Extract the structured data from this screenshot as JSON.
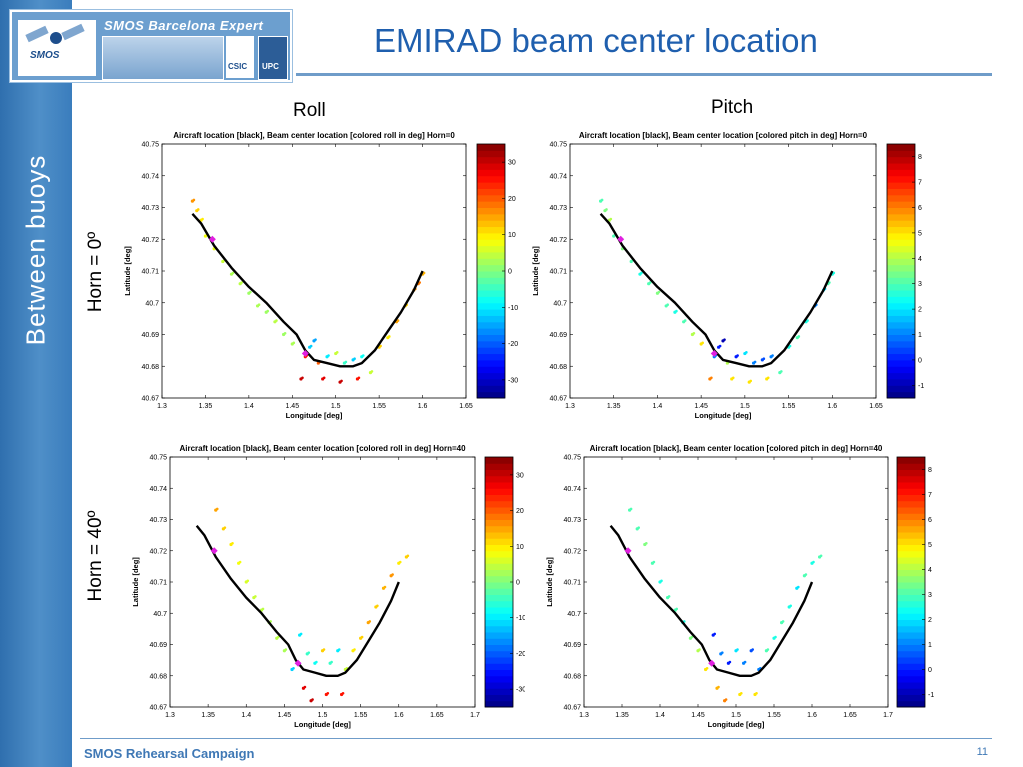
{
  "header": {
    "logo_title": "SMOS Barcelona Expert Centre",
    "smos_logo": "SMOS",
    "csic_logo": "CSIC",
    "upc_logo": "UPC",
    "title": "EMIRAD beam center location"
  },
  "sidebar": {
    "text": "Between  buoys"
  },
  "columns": {
    "roll": "Roll",
    "pitch": "Pitch"
  },
  "rows": {
    "horn0": "Horn = 0º",
    "horn40": "Horn = 40º"
  },
  "footer": {
    "left": "SMOS Rehearsal Campaign",
    "page": "11"
  },
  "chart_data": [
    {
      "type": "scatter",
      "title": "Aircraft location [black], Beam center location [colored roll in deg] Horn=0",
      "xlabel": "Longitude [deg]",
      "ylabel": "Latitude [deg]",
      "xlim": [
        1.3,
        1.65
      ],
      "ylim": [
        40.67,
        40.75
      ],
      "xticks": [
        "1.3",
        "1.35",
        "1.4",
        "1.45",
        "1.5",
        "1.55",
        "1.6",
        "1.65"
      ],
      "yticks": [
        "40.67",
        "40.68",
        "40.69",
        "40.7",
        "40.71",
        "40.72",
        "40.73",
        "40.74",
        "40.75"
      ],
      "colorbar": {
        "min": -35,
        "max": 35,
        "ticks": [
          "-30",
          "-20",
          "-10",
          "0",
          "10",
          "20",
          "30"
        ]
      },
      "aircraft_track": {
        "x": [
          1.335,
          1.345,
          1.36,
          1.38,
          1.4,
          1.42,
          1.44,
          1.455,
          1.465,
          1.475,
          1.49,
          1.505,
          1.52,
          1.53,
          1.545,
          1.56,
          1.575,
          1.59,
          1.6
        ],
        "y": [
          40.728,
          40.725,
          40.718,
          40.711,
          40.705,
          40.7,
          40.694,
          40.69,
          40.685,
          40.682,
          40.681,
          40.68,
          40.68,
          40.681,
          40.685,
          40.691,
          40.697,
          40.704,
          40.71
        ]
      },
      "beam_points": {
        "x": [
          1.335,
          1.34,
          1.345,
          1.35,
          1.36,
          1.37,
          1.38,
          1.39,
          1.4,
          1.41,
          1.42,
          1.43,
          1.44,
          1.45,
          1.46,
          1.465,
          1.47,
          1.475,
          1.48,
          1.485,
          1.49,
          1.5,
          1.505,
          1.51,
          1.52,
          1.525,
          1.53,
          1.54,
          1.55,
          1.56,
          1.57,
          1.58,
          1.59,
          1.595,
          1.6
        ],
        "y": [
          40.732,
          40.729,
          40.726,
          40.721,
          40.717,
          40.713,
          40.709,
          40.706,
          40.703,
          40.699,
          40.697,
          40.694,
          40.69,
          40.687,
          40.676,
          40.683,
          40.686,
          40.688,
          40.681,
          40.676,
          40.683,
          40.684,
          40.675,
          40.681,
          40.682,
          40.676,
          40.683,
          40.678,
          40.686,
          40.689,
          40.694,
          40.699,
          40.704,
          40.706,
          40.709
        ],
        "values": [
          16,
          12,
          10,
          8,
          7,
          5,
          3,
          4,
          2,
          3,
          2,
          4,
          2,
          3,
          30,
          25,
          -12,
          -15,
          20,
          28,
          -10,
          5,
          30,
          -5,
          -12,
          25,
          -8,
          5,
          12,
          10,
          15,
          12,
          16,
          18,
          14
        ]
      },
      "beam_start_marker": {
        "x": 1.358,
        "y": 40.72
      },
      "beam_end_marker": {
        "x": 1.465,
        "y": 40.684
      }
    },
    {
      "type": "scatter",
      "title": "Aircraft location [black], Beam center location [colored pitch in deg] Horn=0",
      "xlabel": "Longitude [deg]",
      "ylabel": "Latitude [deg]",
      "xlim": [
        1.3,
        1.65
      ],
      "ylim": [
        40.67,
        40.75
      ],
      "xticks": [
        "1.3",
        "1.35",
        "1.4",
        "1.45",
        "1.5",
        "1.55",
        "1.6",
        "1.65"
      ],
      "yticks": [
        "40.67",
        "40.68",
        "40.69",
        "40.7",
        "40.71",
        "40.72",
        "40.73",
        "40.74",
        "40.75"
      ],
      "colorbar": {
        "min": -1.5,
        "max": 8.5,
        "ticks": [
          "-1",
          "0",
          "1",
          "2",
          "3",
          "4",
          "5",
          "6",
          "7",
          "8"
        ]
      },
      "aircraft_track": {
        "x": [
          1.335,
          1.345,
          1.36,
          1.38,
          1.4,
          1.42,
          1.44,
          1.455,
          1.465,
          1.475,
          1.49,
          1.505,
          1.52,
          1.53,
          1.545,
          1.56,
          1.575,
          1.59,
          1.6
        ],
        "y": [
          40.728,
          40.725,
          40.718,
          40.711,
          40.705,
          40.7,
          40.694,
          40.69,
          40.685,
          40.682,
          40.681,
          40.68,
          40.68,
          40.681,
          40.685,
          40.691,
          40.697,
          40.704,
          40.71
        ]
      },
      "beam_points": {
        "x": [
          1.335,
          1.34,
          1.345,
          1.35,
          1.36,
          1.37,
          1.38,
          1.39,
          1.4,
          1.41,
          1.42,
          1.43,
          1.44,
          1.45,
          1.46,
          1.465,
          1.47,
          1.475,
          1.48,
          1.485,
          1.49,
          1.5,
          1.505,
          1.51,
          1.52,
          1.525,
          1.53,
          1.54,
          1.55,
          1.56,
          1.57,
          1.58,
          1.59,
          1.595,
          1.6
        ],
        "y": [
          40.732,
          40.729,
          40.726,
          40.721,
          40.717,
          40.713,
          40.709,
          40.706,
          40.703,
          40.699,
          40.697,
          40.694,
          40.69,
          40.687,
          40.676,
          40.683,
          40.686,
          40.688,
          40.681,
          40.676,
          40.683,
          40.684,
          40.675,
          40.681,
          40.682,
          40.676,
          40.683,
          40.678,
          40.686,
          40.689,
          40.694,
          40.699,
          40.704,
          40.706,
          40.709
        ],
        "values": [
          3,
          3.5,
          4,
          3,
          3.5,
          3,
          2.5,
          3,
          3.5,
          3,
          2.5,
          3,
          4,
          5,
          6,
          1,
          0,
          -1,
          4,
          5,
          0,
          2,
          5,
          1,
          0.5,
          5,
          1,
          3,
          2.5,
          3,
          2.5,
          1,
          2,
          3,
          2.5
        ]
      },
      "beam_start_marker": {
        "x": 1.358,
        "y": 40.72
      },
      "beam_end_marker": {
        "x": 1.465,
        "y": 40.684
      }
    },
    {
      "type": "scatter",
      "title": "Aircraft location [black], Beam center location [colored roll in deg] Horn=40",
      "xlabel": "Longitude [deg]",
      "ylabel": "Latitude [deg]",
      "xlim": [
        1.3,
        1.7
      ],
      "ylim": [
        40.67,
        40.75
      ],
      "xticks": [
        "1.3",
        "1.35",
        "1.4",
        "1.45",
        "1.5",
        "1.55",
        "1.6",
        "1.65",
        "1.7"
      ],
      "yticks": [
        "40.67",
        "40.68",
        "40.69",
        "40.7",
        "40.71",
        "40.72",
        "40.73",
        "40.74",
        "40.75"
      ],
      "colorbar": {
        "min": -35,
        "max": 35,
        "ticks": [
          "-30",
          "-20",
          "-10",
          "0",
          "10",
          "20",
          "30"
        ]
      },
      "aircraft_track": {
        "x": [
          1.335,
          1.345,
          1.36,
          1.38,
          1.4,
          1.42,
          1.44,
          1.455,
          1.465,
          1.475,
          1.49,
          1.505,
          1.52,
          1.53,
          1.545,
          1.56,
          1.575,
          1.59,
          1.6
        ],
        "y": [
          40.728,
          40.725,
          40.718,
          40.711,
          40.705,
          40.7,
          40.694,
          40.69,
          40.685,
          40.682,
          40.681,
          40.68,
          40.68,
          40.681,
          40.685,
          40.691,
          40.697,
          40.704,
          40.71
        ]
      },
      "beam_points": {
        "x": [
          1.36,
          1.37,
          1.38,
          1.39,
          1.4,
          1.41,
          1.42,
          1.43,
          1.44,
          1.45,
          1.46,
          1.47,
          1.475,
          1.48,
          1.485,
          1.49,
          1.5,
          1.505,
          1.51,
          1.52,
          1.525,
          1.53,
          1.54,
          1.55,
          1.56,
          1.57,
          1.58,
          1.59,
          1.6,
          1.61
        ],
        "y": [
          40.733,
          40.727,
          40.722,
          40.716,
          40.71,
          40.705,
          40.701,
          40.697,
          40.692,
          40.688,
          40.682,
          40.693,
          40.676,
          40.687,
          40.672,
          40.684,
          40.688,
          40.674,
          40.684,
          40.688,
          40.674,
          40.682,
          40.688,
          40.692,
          40.697,
          40.702,
          40.708,
          40.712,
          40.716,
          40.718
        ],
        "values": [
          15,
          12,
          10,
          8,
          6,
          5,
          4,
          3,
          4,
          3,
          -12,
          -10,
          28,
          -5,
          30,
          -8,
          12,
          25,
          -5,
          -10,
          25,
          5,
          10,
          12,
          15,
          12,
          14,
          16,
          10,
          12
        ]
      },
      "beam_start_marker": {
        "x": 1.358,
        "y": 40.72
      },
      "beam_end_marker": {
        "x": 1.468,
        "y": 40.684
      }
    },
    {
      "type": "scatter",
      "title": "Aircraft location [black], Beam center location [colored pitch in deg] Horn=40",
      "xlabel": "Longitude [deg]",
      "ylabel": "Latitude [deg]",
      "xlim": [
        1.3,
        1.7
      ],
      "ylim": [
        40.67,
        40.75
      ],
      "xticks": [
        "1.3",
        "1.35",
        "1.4",
        "1.45",
        "1.5",
        "1.55",
        "1.6",
        "1.65",
        "1.7"
      ],
      "yticks": [
        "40.67",
        "40.68",
        "40.69",
        "40.7",
        "40.71",
        "40.72",
        "40.73",
        "40.74",
        "40.75"
      ],
      "colorbar": {
        "min": -1.5,
        "max": 8.5,
        "ticks": [
          "-1",
          "0",
          "1",
          "2",
          "3",
          "4",
          "5",
          "6",
          "7",
          "8"
        ]
      },
      "aircraft_track": {
        "x": [
          1.335,
          1.345,
          1.36,
          1.38,
          1.4,
          1.42,
          1.44,
          1.455,
          1.465,
          1.475,
          1.49,
          1.505,
          1.52,
          1.53,
          1.545,
          1.56,
          1.575,
          1.59,
          1.6
        ],
        "y": [
          40.728,
          40.725,
          40.718,
          40.711,
          40.705,
          40.7,
          40.694,
          40.69,
          40.685,
          40.682,
          40.681,
          40.68,
          40.68,
          40.681,
          40.685,
          40.691,
          40.697,
          40.704,
          40.71
        ]
      },
      "beam_points": {
        "x": [
          1.36,
          1.37,
          1.38,
          1.39,
          1.4,
          1.41,
          1.42,
          1.43,
          1.44,
          1.45,
          1.46,
          1.47,
          1.475,
          1.48,
          1.485,
          1.49,
          1.5,
          1.505,
          1.51,
          1.52,
          1.525,
          1.53,
          1.54,
          1.55,
          1.56,
          1.57,
          1.58,
          1.59,
          1.6,
          1.61
        ],
        "y": [
          40.733,
          40.727,
          40.722,
          40.716,
          40.71,
          40.705,
          40.701,
          40.697,
          40.692,
          40.688,
          40.682,
          40.693,
          40.676,
          40.687,
          40.672,
          40.684,
          40.688,
          40.674,
          40.684,
          40.688,
          40.674,
          40.682,
          40.688,
          40.692,
          40.697,
          40.702,
          40.708,
          40.712,
          40.716,
          40.718
        ],
        "values": [
          3,
          3,
          3.5,
          3,
          2.5,
          3,
          3,
          2.5,
          3.5,
          4,
          5,
          0,
          5.5,
          1,
          6,
          0,
          2,
          5,
          1,
          0.5,
          5,
          1,
          3,
          2.5,
          3,
          2.5,
          2,
          3,
          2.5,
          3
        ]
      },
      "beam_start_marker": {
        "x": 1.358,
        "y": 40.72
      },
      "beam_end_marker": {
        "x": 1.468,
        "y": 40.684
      }
    }
  ]
}
